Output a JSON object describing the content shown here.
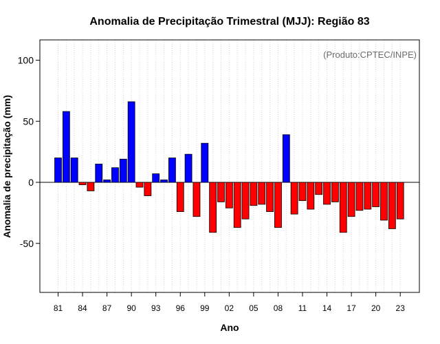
{
  "colors": {
    "positive": "#0000ff",
    "negative": "#ff0000",
    "source": "#6b6b6b",
    "grid": "#d3d3d3"
  },
  "chart_data": {
    "type": "bar",
    "title": "Anomalia de Precipitação Trimestral (MJJ): Região 83",
    "xlabel": "Ano",
    "ylabel": "Anomalia de precipitação (mm)",
    "source_note": "(Produto:CPTEC/INPE)",
    "ylim": [
      -90,
      116
    ],
    "yticks": [
      -50,
      0,
      50,
      100
    ],
    "grid": "vertical dotted lines at each year",
    "categories": [
      "1981",
      "1982",
      "1983",
      "1984",
      "1985",
      "1986",
      "1987",
      "1988",
      "1989",
      "1990",
      "1991",
      "1992",
      "1993",
      "1994",
      "1995",
      "1996",
      "1997",
      "1998",
      "1999",
      "2000",
      "2001",
      "2002",
      "2003",
      "2004",
      "2005",
      "2006",
      "2007",
      "2008",
      "2009",
      "2010",
      "2011",
      "2012",
      "2013",
      "2014",
      "2015",
      "2016",
      "2017",
      "2018",
      "2019",
      "2020",
      "2021",
      "2022",
      "2023"
    ],
    "xtick_labels": [
      {
        "index": 0,
        "label": "81"
      },
      {
        "index": 3,
        "label": "84"
      },
      {
        "index": 6,
        "label": "87"
      },
      {
        "index": 9,
        "label": "90"
      },
      {
        "index": 12,
        "label": "93"
      },
      {
        "index": 15,
        "label": "96"
      },
      {
        "index": 18,
        "label": "99"
      },
      {
        "index": 21,
        "label": "02"
      },
      {
        "index": 24,
        "label": "05"
      },
      {
        "index": 27,
        "label": "08"
      },
      {
        "index": 30,
        "label": "11"
      },
      {
        "index": 33,
        "label": "14"
      },
      {
        "index": 36,
        "label": "17"
      },
      {
        "index": 39,
        "label": "20"
      },
      {
        "index": 42,
        "label": "23"
      }
    ],
    "values": [
      20,
      58,
      20,
      -2,
      -7,
      15,
      2,
      12,
      19,
      66,
      -4,
      -11,
      7,
      2,
      20,
      -24,
      23,
      -28,
      32,
      -41,
      -16,
      -21,
      -37,
      -30,
      -19,
      -18,
      -24,
      -37,
      39,
      -26,
      -15,
      -22,
      -10,
      -18,
      -16,
      -41,
      -28,
      -23,
      -22,
      -20,
      -31,
      -38,
      -30
    ]
  }
}
